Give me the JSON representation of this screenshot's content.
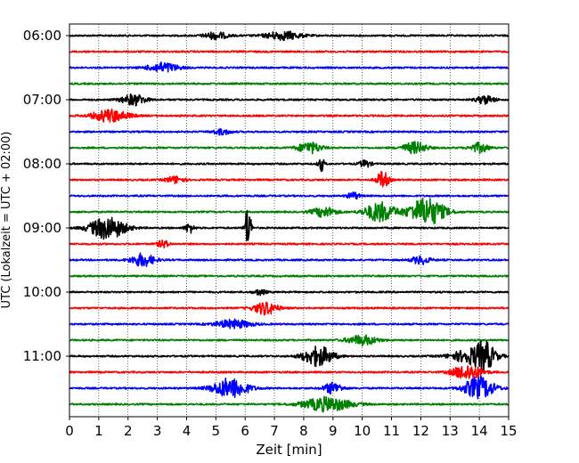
{
  "chart_data": {
    "type": "line",
    "xlabel": "Zeit  [min]",
    "ylabel": "UTC (Lokalzeit = UTC + 02:00)",
    "xlim": [
      0,
      15
    ],
    "xticks": [
      "0",
      "1",
      "2",
      "3",
      "4",
      "5",
      "6",
      "7",
      "8",
      "9",
      "10",
      "11",
      "12",
      "13",
      "14",
      "15"
    ],
    "ytick_labels": [
      "06:00",
      "07:00",
      "08:00",
      "09:00",
      "10:00",
      "11:00"
    ],
    "grid_x": true,
    "trace_interval_minutes": 15,
    "colors": [
      "#000000",
      "#ff0000",
      "#0000ff",
      "#008000"
    ],
    "traces": [
      {
        "start": "06:00",
        "color": "#000000",
        "events": [
          {
            "t": 5,
            "amp": 0.25,
            "w": 0.4
          },
          {
            "t": 7.3,
            "amp": 0.3,
            "w": 0.6
          }
        ]
      },
      {
        "start": "06:15",
        "color": "#ff0000",
        "events": []
      },
      {
        "start": "06:30",
        "color": "#0000ff",
        "events": [
          {
            "t": 3.2,
            "amp": 0.35,
            "w": 0.5
          }
        ]
      },
      {
        "start": "06:45",
        "color": "#008000",
        "events": []
      },
      {
        "start": "07:00",
        "color": "#000000",
        "events": [
          {
            "t": 2.2,
            "amp": 0.4,
            "w": 0.4
          },
          {
            "t": 14.2,
            "amp": 0.3,
            "w": 0.3
          }
        ]
      },
      {
        "start": "07:15",
        "color": "#ff0000",
        "events": [
          {
            "t": 1.4,
            "amp": 0.45,
            "w": 0.6
          }
        ]
      },
      {
        "start": "07:30",
        "color": "#0000ff",
        "events": [
          {
            "t": 5.2,
            "amp": 0.2,
            "w": 0.3
          }
        ]
      },
      {
        "start": "07:45",
        "color": "#008000",
        "events": [
          {
            "t": 8.2,
            "amp": 0.4,
            "w": 0.4
          },
          {
            "t": 11.8,
            "amp": 0.4,
            "w": 0.4
          },
          {
            "t": 14.0,
            "amp": 0.35,
            "w": 0.3
          }
        ]
      },
      {
        "start": "08:00",
        "color": "#000000",
        "events": [
          {
            "t": 8.6,
            "amp": 0.5,
            "w": 0.1
          },
          {
            "t": 10.1,
            "amp": 0.25,
            "w": 0.2
          }
        ]
      },
      {
        "start": "08:15",
        "color": "#ff0000",
        "events": [
          {
            "t": 3.6,
            "amp": 0.25,
            "w": 0.3
          },
          {
            "t": 10.7,
            "amp": 0.6,
            "w": 0.2
          }
        ]
      },
      {
        "start": "08:30",
        "color": "#0000ff",
        "events": [
          {
            "t": 9.7,
            "amp": 0.25,
            "w": 0.2
          }
        ]
      },
      {
        "start": "08:45",
        "color": "#008000",
        "events": [
          {
            "t": 8.7,
            "amp": 0.35,
            "w": 0.4
          },
          {
            "t": 10.6,
            "amp": 0.7,
            "w": 0.5
          },
          {
            "t": 12.2,
            "amp": 1.0,
            "w": 0.6
          }
        ]
      },
      {
        "start": "09:00",
        "color": "#000000",
        "events": [
          {
            "t": 1.3,
            "amp": 0.8,
            "w": 0.6
          },
          {
            "t": 4.1,
            "amp": 0.35,
            "w": 0.15
          },
          {
            "t": 6.1,
            "amp": 1.6,
            "w": 0.1
          }
        ]
      },
      {
        "start": "09:15",
        "color": "#ff0000",
        "events": [
          {
            "t": 3.2,
            "amp": 0.25,
            "w": 0.2
          }
        ]
      },
      {
        "start": "09:30",
        "color": "#0000ff",
        "events": [
          {
            "t": 2.5,
            "amp": 0.45,
            "w": 0.4
          },
          {
            "t": 12.0,
            "amp": 0.3,
            "w": 0.3
          }
        ]
      },
      {
        "start": "09:45",
        "color": "#008000",
        "events": []
      },
      {
        "start": "10:00",
        "color": "#000000",
        "events": [
          {
            "t": 6.5,
            "amp": 0.2,
            "w": 0.2
          }
        ]
      },
      {
        "start": "10:15",
        "color": "#ff0000",
        "events": [
          {
            "t": 6.7,
            "amp": 0.45,
            "w": 0.4
          }
        ]
      },
      {
        "start": "10:30",
        "color": "#0000ff",
        "events": [
          {
            "t": 5.6,
            "amp": 0.3,
            "w": 0.6
          }
        ]
      },
      {
        "start": "10:45",
        "color": "#008000",
        "events": [
          {
            "t": 10.0,
            "amp": 0.35,
            "w": 0.5
          }
        ]
      },
      {
        "start": "11:00",
        "color": "#000000",
        "events": [
          {
            "t": 8.5,
            "amp": 0.7,
            "w": 0.5
          },
          {
            "t": 13.8,
            "amp": 0.55,
            "w": 0.7
          },
          {
            "t": 14.2,
            "amp": 0.7,
            "w": 0.3
          }
        ]
      },
      {
        "start": "11:15",
        "color": "#ff0000",
        "events": [
          {
            "t": 13.6,
            "amp": 0.55,
            "w": 0.5
          }
        ]
      },
      {
        "start": "11:30",
        "color": "#0000ff",
        "events": [
          {
            "t": 5.5,
            "amp": 0.7,
            "w": 0.6
          },
          {
            "t": 9.0,
            "amp": 0.4,
            "w": 0.3
          },
          {
            "t": 14.0,
            "amp": 0.8,
            "w": 0.5
          }
        ]
      },
      {
        "start": "11:45",
        "color": "#008000",
        "events": [
          {
            "t": 8.8,
            "amp": 0.5,
            "w": 0.8
          }
        ]
      }
    ]
  }
}
